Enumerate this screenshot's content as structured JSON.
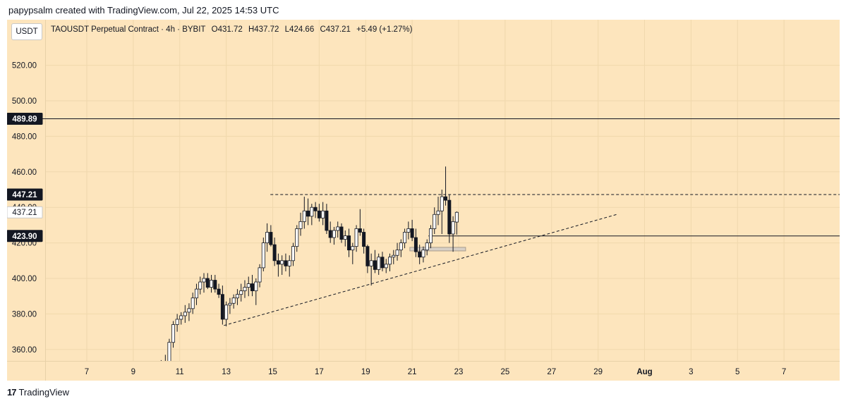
{
  "header": {
    "text": "papypsalm created with TradingView.com, Jul 22, 2025 14:53 UTC"
  },
  "unit_label": "USDT",
  "legend": {
    "symbol": "TAOUSDT Perpetual Contract · 4h · BYBIT",
    "open": "O431.72",
    "high": "H437.72",
    "low": "L424.66",
    "close": "C437.21",
    "change": "+5.49 (+1.27%)"
  },
  "footer": {
    "logo": "17",
    "brand": "TradingView"
  },
  "colors": {
    "background": "#fde5bd",
    "candle_fill": "#ffffff",
    "candle_border": "#131722",
    "bearish_fill": "#131722",
    "highlight_box": "#d8d0c6"
  },
  "chart_data": {
    "type": "candlestick",
    "ylim": [
      350,
      550
    ],
    "y_ticks": [
      360,
      380,
      400,
      420,
      440,
      460,
      480,
      500,
      520
    ],
    "y_tick_labels": [
      "360.00",
      "380.00",
      "400.00",
      "420.00",
      "440.00",
      "460.00",
      "480.00",
      "500.00",
      "520.00"
    ],
    "x_ticks": [
      "7",
      "9",
      "11",
      "13",
      "15",
      "17",
      "19",
      "21",
      "23",
      "25",
      "27",
      "29",
      "Aug",
      "3",
      "5",
      "7"
    ],
    "price_labels": [
      {
        "value": 489.89,
        "text": "489.89",
        "style": "dark"
      },
      {
        "value": 447.21,
        "text": "447.21",
        "style": "dark"
      },
      {
        "value": 437.21,
        "text": "437.21",
        "style": "light"
      },
      {
        "value": 423.9,
        "text": "423.90",
        "style": "dark"
      }
    ],
    "drawings": {
      "hline_solid": [
        489.89
      ],
      "hline_partial_solid": {
        "from_day": 21.7,
        "value": 423.9
      },
      "hline_dashed": {
        "from_day": 14.9,
        "to_day": 28,
        "value": 447.21
      },
      "trendline_dashed": {
        "from": [
          12.9,
          373.5
        ],
        "to": [
          29.8,
          436
        ]
      },
      "highlight_box": {
        "from_day": 20.9,
        "to_day": 23.3,
        "low": 415.5,
        "high": 417.5
      }
    },
    "candles": [
      [
        10.2,
        349,
        354,
        345,
        350
      ],
      [
        10.38,
        352,
        357,
        347,
        350
      ],
      [
        10.55,
        352,
        366,
        350,
        364
      ],
      [
        10.72,
        364,
        376,
        361,
        374
      ],
      [
        10.89,
        374,
        380,
        370,
        377
      ],
      [
        11.06,
        377,
        381,
        374,
        379
      ],
      [
        11.23,
        379,
        385,
        375,
        381
      ],
      [
        11.4,
        381,
        386,
        376,
        383
      ],
      [
        11.56,
        383,
        392,
        380,
        389
      ],
      [
        11.72,
        389,
        397,
        385,
        394
      ],
      [
        11.88,
        394,
        401,
        391,
        398
      ],
      [
        12.04,
        398,
        403,
        392,
        400
      ],
      [
        12.2,
        400,
        403,
        394,
        395
      ],
      [
        12.36,
        395,
        402,
        392,
        399
      ],
      [
        12.52,
        399,
        402,
        392,
        394
      ],
      [
        12.68,
        394,
        397,
        389,
        391
      ],
      [
        12.84,
        391,
        396,
        374,
        377
      ],
      [
        13.0,
        377,
        387,
        373,
        385
      ],
      [
        13.16,
        385,
        389,
        380,
        386
      ],
      [
        13.32,
        386,
        391,
        383,
        389
      ],
      [
        13.48,
        389,
        394,
        385,
        391
      ],
      [
        13.64,
        391,
        397,
        387,
        393
      ],
      [
        13.8,
        393,
        399,
        389,
        395
      ],
      [
        13.96,
        395,
        401,
        390,
        397
      ],
      [
        14.12,
        397,
        402,
        390,
        393
      ],
      [
        14.28,
        393,
        400,
        385,
        398
      ],
      [
        14.44,
        398,
        408,
        395,
        406
      ],
      [
        14.6,
        406,
        423,
        404,
        420
      ],
      [
        14.76,
        420,
        431,
        415,
        426
      ],
      [
        14.92,
        426,
        430,
        418,
        419
      ],
      [
        15.08,
        419,
        423,
        407,
        410
      ],
      [
        15.24,
        410,
        414,
        401,
        408
      ],
      [
        15.4,
        408,
        413,
        402,
        410
      ],
      [
        15.56,
        410,
        414,
        404,
        407
      ],
      [
        15.72,
        407,
        413,
        401,
        410
      ],
      [
        15.88,
        410,
        420,
        407,
        418
      ],
      [
        16.04,
        418,
        430,
        415,
        428
      ],
      [
        16.2,
        428,
        437,
        424,
        432
      ],
      [
        16.36,
        432,
        446,
        428,
        438
      ],
      [
        16.52,
        438,
        445,
        430,
        435
      ],
      [
        16.68,
        435,
        442,
        430,
        440
      ],
      [
        16.84,
        440,
        443,
        434,
        438
      ],
      [
        17.0,
        438,
        442,
        432,
        434
      ],
      [
        17.16,
        434,
        443,
        430,
        438
      ],
      [
        17.32,
        438,
        442,
        425,
        427
      ],
      [
        17.48,
        427,
        432,
        420,
        423
      ],
      [
        17.64,
        423,
        429,
        419,
        427
      ],
      [
        17.8,
        427,
        432,
        423,
        429
      ],
      [
        17.96,
        429,
        431,
        420,
        422
      ],
      [
        18.12,
        422,
        427,
        418,
        424
      ],
      [
        18.28,
        424,
        428,
        412,
        416
      ],
      [
        18.44,
        416,
        420,
        408,
        418
      ],
      [
        18.6,
        418,
        430,
        415,
        428
      ],
      [
        18.76,
        428,
        439,
        424,
        426
      ],
      [
        18.92,
        426,
        428,
        414,
        418
      ],
      [
        19.08,
        418,
        419,
        403,
        407
      ],
      [
        19.24,
        407,
        414,
        396,
        410
      ],
      [
        19.4,
        410,
        416,
        403,
        405
      ],
      [
        19.56,
        405,
        414,
        402,
        412
      ],
      [
        19.72,
        412,
        415,
        404,
        406
      ],
      [
        19.88,
        406,
        411,
        403,
        408
      ],
      [
        20.04,
        408,
        414,
        404,
        412
      ],
      [
        20.2,
        412,
        416,
        408,
        413
      ],
      [
        20.36,
        413,
        420,
        410,
        416
      ],
      [
        20.52,
        416,
        422,
        412,
        420
      ],
      [
        20.68,
        420,
        428,
        417,
        426
      ],
      [
        20.84,
        426,
        432,
        422,
        428
      ],
      [
        21.0,
        428,
        433,
        421,
        423
      ],
      [
        21.16,
        423,
        428,
        412,
        415
      ],
      [
        21.32,
        415,
        419,
        408,
        412
      ],
      [
        21.48,
        412,
        418,
        409,
        416
      ],
      [
        21.64,
        416,
        422,
        413,
        420
      ],
      [
        21.8,
        420,
        430,
        417,
        428
      ],
      [
        21.96,
        428,
        440,
        425,
        436
      ],
      [
        22.12,
        436,
        446,
        430,
        438
      ],
      [
        22.28,
        438,
        450,
        425,
        446
      ],
      [
        22.44,
        446,
        463,
        441,
        444
      ],
      [
        22.6,
        444,
        447,
        420,
        425
      ],
      [
        22.76,
        425,
        435,
        415,
        432
      ],
      [
        22.92,
        431.72,
        437.72,
        424.66,
        437.21
      ]
    ]
  }
}
